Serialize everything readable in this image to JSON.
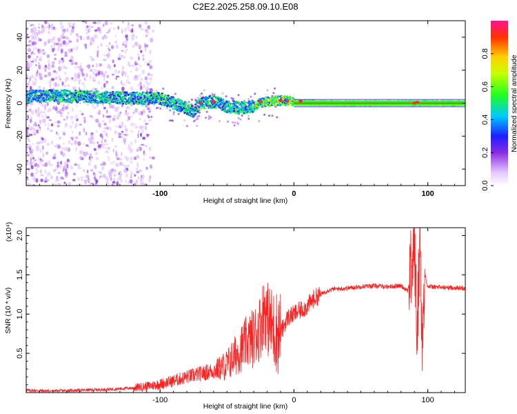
{
  "title": "C2E2.2025.258.09.10.E08",
  "chart_data": [
    {
      "type": "heatmap",
      "name": "spectrogram",
      "xlabel": "Height of straight line (km)",
      "ylabel": "Frequency (Hz)",
      "xlim": [
        -200,
        128
      ],
      "ylim": [
        -50,
        50
      ],
      "xticks": [
        -100,
        0,
        100
      ],
      "xtick_labels": [
        "-100",
        "0",
        "100"
      ],
      "yticks": [
        -40,
        -20,
        0,
        20,
        40
      ],
      "ytick_labels": [
        "-40",
        "-20",
        "0",
        "20",
        "40"
      ],
      "colorbar": {
        "label": "Normalized spectral amplitude",
        "range": [
          0,
          1
        ],
        "ticks": [
          0.0,
          0.2,
          0.4,
          0.6,
          0.8
        ],
        "tick_labels": [
          "0.0",
          "0.2",
          "0.4",
          "0.6",
          "0.8"
        ]
      },
      "ridge": {
        "x": [
          -200,
          -180,
          -160,
          -140,
          -120,
          -100,
          -90,
          -80,
          -75,
          -70,
          -60,
          -50,
          -40,
          -30,
          -25,
          -20,
          -15,
          -10,
          0,
          10,
          20,
          40,
          60,
          80,
          90,
          100,
          128
        ],
        "freq": [
          4,
          4.5,
          4,
          3.5,
          3,
          3,
          0,
          -3,
          -5,
          0,
          1,
          -2,
          -3,
          -2,
          0,
          1,
          1.5,
          1.5,
          1,
          0.5,
          0,
          0,
          0,
          0,
          0,
          0,
          0
        ]
      }
    },
    {
      "type": "line",
      "name": "snr",
      "xlabel": "Height of straight line (km)",
      "ylabel": "SNR (10 * v/v)",
      "y_multiplier": "(x10⁴)",
      "xlim": [
        -200,
        128
      ],
      "ylim": [
        0,
        2.1
      ],
      "xticks": [
        -100,
        0,
        100
      ],
      "xtick_labels": [
        "-100",
        "0",
        "100"
      ],
      "yticks": [
        0.5,
        1.0,
        1.5,
        2.0
      ],
      "ytick_labels": [
        "0.5",
        "1.0",
        "1.5",
        "2.0"
      ],
      "series": [
        {
          "name": "SNR",
          "color": "#ff2020",
          "x": [
            -200,
            -180,
            -160,
            -140,
            -120,
            -110,
            -100,
            -90,
            -80,
            -70,
            -60,
            -50,
            -45,
            -40,
            -35,
            -30,
            -25,
            -22,
            -20,
            -15,
            -10,
            -5,
            0,
            5,
            10,
            15,
            20,
            25,
            30,
            40,
            50,
            60,
            70,
            80,
            85,
            88,
            90,
            92,
            94,
            96,
            98,
            100,
            110,
            128
          ],
          "y": [
            0.03,
            0.02,
            0.03,
            0.04,
            0.06,
            0.08,
            0.11,
            0.15,
            0.2,
            0.24,
            0.28,
            0.35,
            0.45,
            0.55,
            0.65,
            0.7,
            0.85,
            1.1,
            0.95,
            0.8,
            0.75,
            0.95,
            1.0,
            1.05,
            1.1,
            1.2,
            1.25,
            1.3,
            1.32,
            1.33,
            1.35,
            1.36,
            1.35,
            1.36,
            1.3,
            1.6,
            1.9,
            0.7,
            2.05,
            0.6,
            1.5,
            1.35,
            1.34,
            1.33
          ]
        }
      ]
    }
  ]
}
